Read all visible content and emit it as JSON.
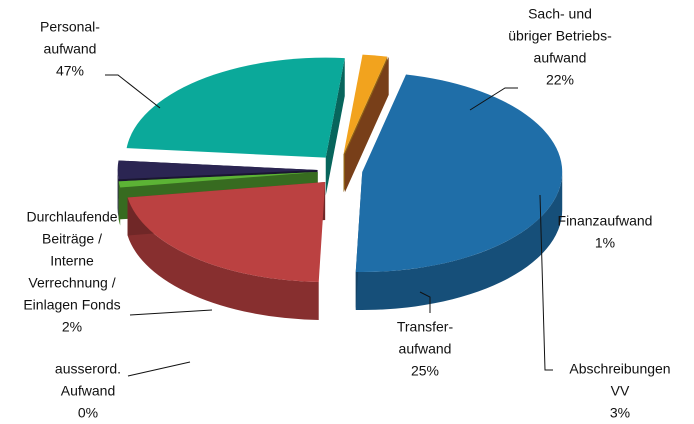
{
  "chart_data": {
    "type": "pie3d",
    "categories": [
      [
        "Personal-",
        "aufwand"
      ],
      [
        "Sach- und",
        "übriger Betriebs-",
        "aufwand"
      ],
      [
        "Finanzaufwand"
      ],
      [
        "Abschreibungen",
        "VV"
      ],
      [
        "Transfer-",
        "aufwand"
      ],
      [
        "Durchlaufende",
        "Beiträge /",
        "Interne",
        "Verrechnung /",
        "Einlagen Fonds"
      ],
      [
        "ausserord.",
        "Aufwand"
      ]
    ],
    "values": [
      47,
      22,
      1,
      3,
      25,
      2,
      0
    ],
    "value_labels": [
      "47%",
      "22%",
      "1%",
      "3%",
      "25%",
      "2%",
      "0%"
    ],
    "colors": [
      "#1f6ea8",
      "#bb4141",
      "#5cb335",
      "#2b2552",
      "#0ba99a",
      "#f2a31e",
      "#c8692a"
    ]
  }
}
